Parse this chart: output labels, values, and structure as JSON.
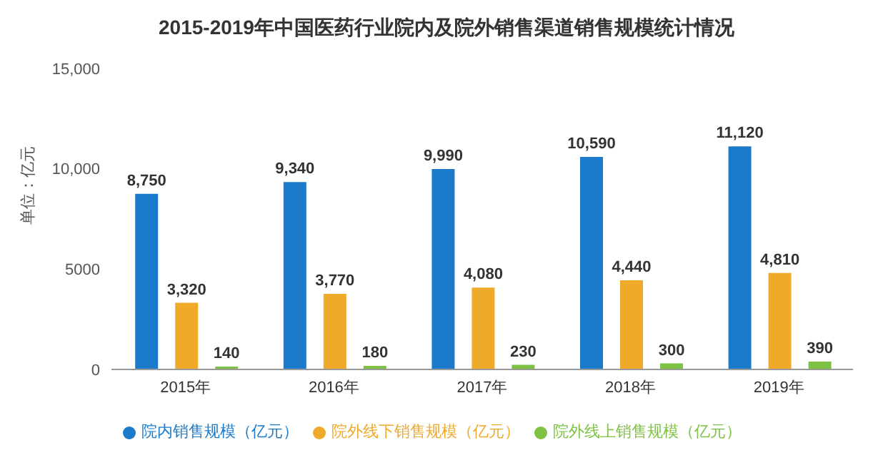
{
  "chart_data": {
    "type": "bar",
    "title": "2015-2019年中国医药行业院内及院外销售渠道销售规模统计情况",
    "ylabel": "单位：亿元",
    "categories": [
      "2015年",
      "2016年",
      "2017年",
      "2018年",
      "2019年"
    ],
    "series": [
      {
        "name": "院内销售规模（亿元）",
        "color": "#1b7bca",
        "values": [
          8750,
          9340,
          9990,
          10590,
          11120
        ],
        "value_labels": [
          "8,750",
          "9,340",
          "9,990",
          "10,590",
          "11,120"
        ]
      },
      {
        "name": "院外线下销售规模（亿元）",
        "color": "#efa92b",
        "values": [
          3320,
          3770,
          4080,
          4440,
          4810
        ],
        "value_labels": [
          "3,320",
          "3,770",
          "4,080",
          "4,440",
          "4,810"
        ]
      },
      {
        "name": "院外线上销售规模（亿元）",
        "color": "#7dc243",
        "values": [
          140,
          180,
          230,
          300,
          390
        ],
        "value_labels": [
          "140",
          "180",
          "230",
          "300",
          "390"
        ]
      }
    ],
    "ylim": [
      0,
      15000
    ],
    "yticks": [
      0,
      {
        "value": 5000,
        "label": "5000"
      },
      {
        "value": 10000,
        "label": "10,000"
      },
      {
        "value": 15000,
        "label": "15,000"
      }
    ],
    "grid": false,
    "legend": "bottom"
  }
}
